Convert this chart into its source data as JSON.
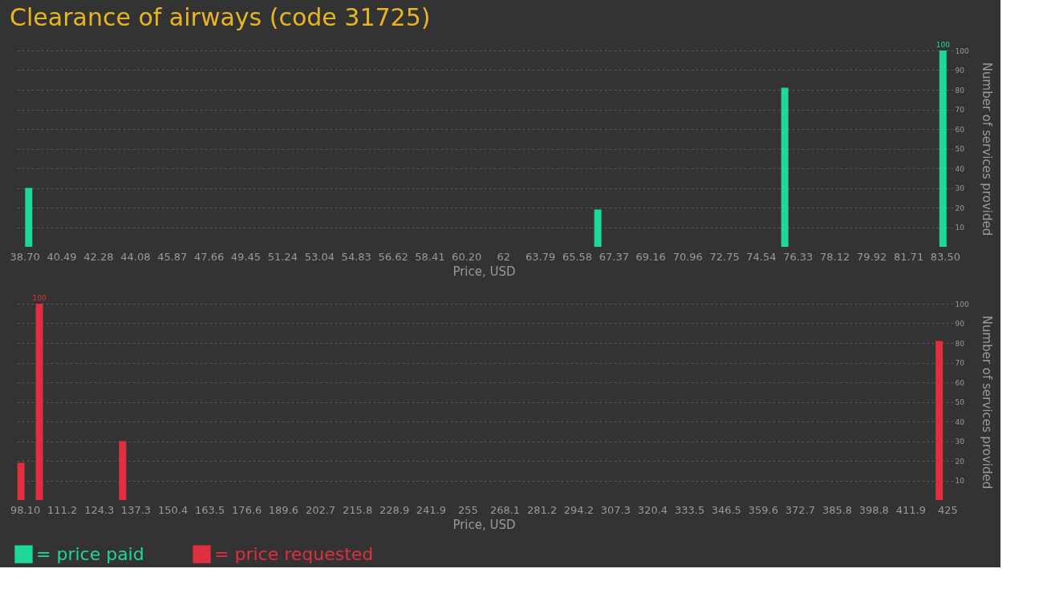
{
  "chart_data": [
    {
      "type": "bar",
      "title": "Clearance of airways (code 31725)",
      "xlabel": "Price, USD",
      "ylabel": "Number of services provided",
      "x": [
        38.9,
        66.6,
        75.7,
        83.4
      ],
      "series": [
        {
          "name": "= price paid",
          "color": "#1ed89a",
          "values": [
            30,
            19,
            81,
            100
          ],
          "value_labels": [
            null,
            null,
            null,
            "100"
          ]
        }
      ],
      "xlim": [
        38.4,
        83.7
      ],
      "xticks": [
        {
          "value": 38.7,
          "label": "38.70"
        },
        40.49,
        42.28,
        44.08,
        45.87,
        47.66,
        49.45,
        51.24,
        53.04,
        54.83,
        56.62,
        58.41,
        {
          "value": 60.2,
          "label": "60.20"
        },
        62,
        63.79,
        65.58,
        67.37,
        69.16,
        70.96,
        72.75,
        74.54,
        76.33,
        78.12,
        79.92,
        81.71,
        {
          "value": 83.5,
          "label": "83.50"
        }
      ],
      "ylim": [
        0,
        100
      ],
      "yticks": [
        10,
        20,
        30,
        40,
        50,
        60,
        70,
        80,
        90,
        100
      ],
      "grid": "y",
      "legend": "bottom"
    },
    {
      "type": "bar",
      "xlabel": "Price, USD",
      "ylabel": "Number of services provided",
      "x": [
        96.7,
        103.2,
        132.7,
        422.1
      ],
      "series": [
        {
          "name": "= price requested",
          "color": "#e0303f",
          "values": [
            19,
            100,
            30,
            81
          ],
          "value_labels": [
            null,
            "100",
            null,
            null
          ]
        }
      ],
      "xlim": [
        95.8,
        425.6
      ],
      "xticks": [
        {
          "value": 98.1,
          "label": "98.10"
        },
        111.2,
        124.3,
        137.3,
        150.4,
        163.5,
        176.6,
        189.6,
        202.7,
        215.8,
        228.9,
        241.9,
        255,
        268.1,
        281.2,
        294.2,
        307.3,
        320.4,
        333.5,
        346.5,
        359.6,
        372.7,
        385.8,
        398.8,
        411.9,
        425
      ],
      "ylim": [
        0,
        100
      ],
      "yticks": [
        10,
        20,
        30,
        40,
        50,
        60,
        70,
        80,
        90,
        100
      ],
      "grid": "y",
      "legend": "bottom"
    }
  ]
}
